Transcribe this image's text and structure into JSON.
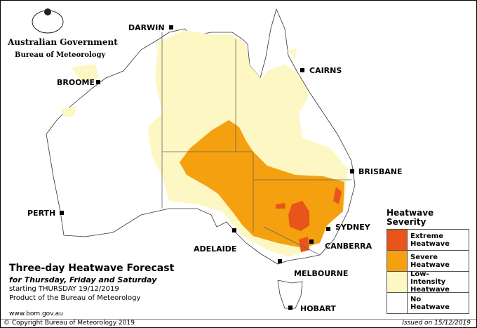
{
  "header": {
    "government": "Australian Government",
    "agency": "Bureau of Meteorology"
  },
  "cities": [
    {
      "label": "DARWIN"
    },
    {
      "label": "CAIRNS"
    },
    {
      "label": "BROOME"
    },
    {
      "label": "BRISBANE"
    },
    {
      "label": "PERTH"
    },
    {
      "label": "SYDNEY"
    },
    {
      "label": "ADELAIDE"
    },
    {
      "label": "CANBERRA"
    },
    {
      "label": "MELBOURNE"
    },
    {
      "label": "HOBART"
    }
  ],
  "title": "Three-day Heatwave Forecast",
  "subtitle": "for Thursday, Friday and Saturday",
  "starting": "starting THURSDAY 19/12/2019",
  "product": "Product of the Bureau of Meteorology",
  "website": "www.bom.gov.au",
  "copyright": "© Copyright Bureau of Meteorology 2019",
  "issued": "Issued on 15/12/2019",
  "legend": {
    "title": "Heatwave Severity",
    "items": [
      {
        "label": "Extreme Heatwave",
        "color": "#e8541a"
      },
      {
        "label": "Severe Heatwave",
        "color": "#f5a00f"
      },
      {
        "label": "Low-Intensity Heatwave",
        "color": "#fdf7c3"
      },
      {
        "label": "No Heatwave",
        "color": "#ffffff"
      }
    ]
  }
}
